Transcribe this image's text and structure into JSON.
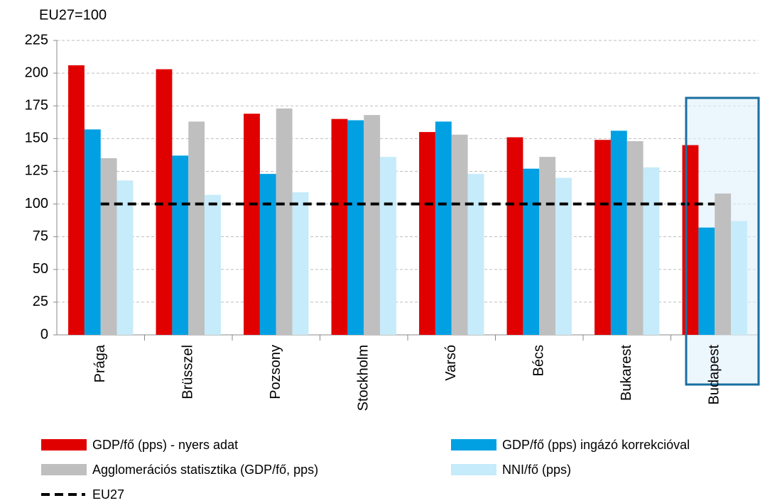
{
  "chart_data": {
    "type": "bar",
    "y_label": "EU27=100",
    "categories": [
      "Prága",
      "Brüsszel",
      "Pozsony",
      "Stockholm",
      "Varsó",
      "Bécs",
      "Bukarest",
      "Budapest"
    ],
    "series": [
      {
        "name": "GDP/fő (pps) - nyers adat",
        "color": "#e00000",
        "values": [
          206,
          203,
          169,
          165,
          155,
          151,
          149,
          145
        ]
      },
      {
        "name": "GDP/fő (pps) ingázó korrekcióval",
        "color": "#00a0e3",
        "values": [
          157,
          137,
          123,
          164,
          163,
          127,
          156,
          82
        ]
      },
      {
        "name": "Agglomerációs statisztika (GDP/fő, pps)",
        "color": "#bfbfbf",
        "values": [
          135,
          163,
          173,
          168,
          153,
          136,
          148,
          108
        ]
      },
      {
        "name": "NNI/fő (pps)",
        "color": "#c6ebfa",
        "values": [
          118,
          107,
          109,
          136,
          123,
          120,
          128,
          87
        ]
      },
      {
        "name": "EU27",
        "color": "#000000",
        "type": "line",
        "style": "dashed",
        "values": [
          100,
          100,
          100,
          100,
          100,
          100,
          100,
          100
        ]
      }
    ],
    "ylim": [
      0,
      225
    ],
    "yticks": [
      0,
      25,
      50,
      75,
      100,
      125,
      150,
      175,
      200,
      225
    ],
    "grid": true,
    "legend": "bottom"
  }
}
